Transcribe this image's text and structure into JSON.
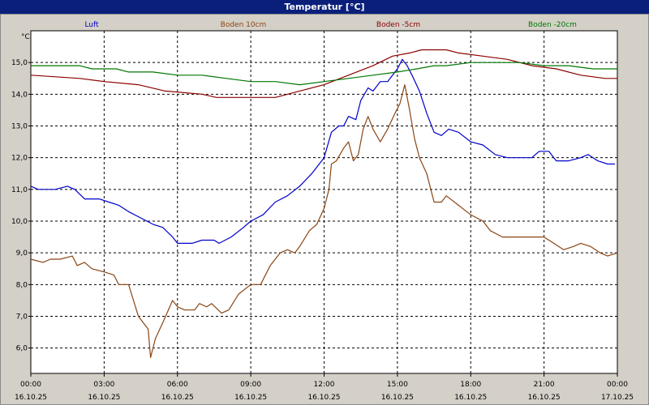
{
  "window": {
    "title": "Temperatur [°C]"
  },
  "chart_data": {
    "type": "line",
    "title": "Temperatur [°C]",
    "ylabel": "°C",
    "ylim": [
      5.2,
      16.0
    ],
    "yticks": [
      6.0,
      7.0,
      8.0,
      9.0,
      10.0,
      11.0,
      12.0,
      13.0,
      14.0,
      15.0
    ],
    "ytick_labels": [
      "6,0",
      "7,0",
      "8,0",
      "9,0",
      "10,0",
      "11,0",
      "12,0",
      "13,0",
      "14,0",
      "15,0"
    ],
    "xlim": [
      0,
      24
    ],
    "xticks": [
      0,
      3,
      6,
      9,
      12,
      15,
      18,
      21,
      24
    ],
    "xtick_time_labels": [
      "00:00",
      "03:00",
      "06:00",
      "09:00",
      "12:00",
      "15:00",
      "18:00",
      "21:00",
      "00:00"
    ],
    "xtick_date_labels": [
      "16.10.25",
      "16.10.25",
      "16.10.25",
      "16.10.25",
      "16.10.25",
      "16.10.25",
      "16.10.25",
      "16.10.25",
      "17.10.25"
    ],
    "grid": true,
    "legend_position": "top",
    "series": [
      {
        "name": "Luft",
        "color": "#0000cc",
        "points": [
          [
            0,
            11.1
          ],
          [
            0.3,
            11.0
          ],
          [
            1,
            11.0
          ],
          [
            1.5,
            11.1
          ],
          [
            1.8,
            11.0
          ],
          [
            2.2,
            10.7
          ],
          [
            2.8,
            10.7
          ],
          [
            3.2,
            10.6
          ],
          [
            3.6,
            10.5
          ],
          [
            4,
            10.3
          ],
          [
            4.5,
            10.1
          ],
          [
            5,
            9.9
          ],
          [
            5.4,
            9.8
          ],
          [
            5.8,
            9.5
          ],
          [
            6,
            9.3
          ],
          [
            6.6,
            9.3
          ],
          [
            7,
            9.4
          ],
          [
            7.5,
            9.4
          ],
          [
            7.7,
            9.3
          ],
          [
            8.2,
            9.5
          ],
          [
            8.7,
            9.8
          ],
          [
            9,
            10.0
          ],
          [
            9.5,
            10.2
          ],
          [
            10,
            10.6
          ],
          [
            10.5,
            10.8
          ],
          [
            11,
            11.1
          ],
          [
            11.5,
            11.5
          ],
          [
            12,
            12.0
          ],
          [
            12.3,
            12.8
          ],
          [
            12.6,
            13.0
          ],
          [
            12.8,
            13.0
          ],
          [
            13,
            13.3
          ],
          [
            13.3,
            13.2
          ],
          [
            13.5,
            13.8
          ],
          [
            13.8,
            14.2
          ],
          [
            14,
            14.1
          ],
          [
            14.3,
            14.4
          ],
          [
            14.6,
            14.4
          ],
          [
            15,
            14.8
          ],
          [
            15.2,
            15.1
          ],
          [
            15.4,
            14.9
          ],
          [
            15.6,
            14.6
          ],
          [
            15.9,
            14.1
          ],
          [
            16.2,
            13.4
          ],
          [
            16.5,
            12.8
          ],
          [
            16.8,
            12.7
          ],
          [
            17.1,
            12.9
          ],
          [
            17.5,
            12.8
          ],
          [
            18,
            12.5
          ],
          [
            18.5,
            12.4
          ],
          [
            19,
            12.1
          ],
          [
            19.5,
            12.0
          ],
          [
            20,
            12.0
          ],
          [
            20.5,
            12.0
          ],
          [
            20.8,
            12.2
          ],
          [
            21.2,
            12.2
          ],
          [
            21.5,
            11.9
          ],
          [
            22,
            11.9
          ],
          [
            22.5,
            12.0
          ],
          [
            22.8,
            12.1
          ],
          [
            23.2,
            11.9
          ],
          [
            23.6,
            11.8
          ],
          [
            23.9,
            11.8
          ]
        ]
      },
      {
        "name": "Boden 10cm",
        "color": "#8b4513",
        "points": [
          [
            0,
            8.8
          ],
          [
            0.5,
            8.7
          ],
          [
            0.8,
            8.8
          ],
          [
            1.2,
            8.8
          ],
          [
            1.7,
            8.9
          ],
          [
            1.9,
            8.6
          ],
          [
            2.2,
            8.7
          ],
          [
            2.5,
            8.5
          ],
          [
            3,
            8.4
          ],
          [
            3.4,
            8.3
          ],
          [
            3.6,
            8.0
          ],
          [
            4,
            8.0
          ],
          [
            4.4,
            7.0
          ],
          [
            4.8,
            6.6
          ],
          [
            4.9,
            5.7
          ],
          [
            5.1,
            6.3
          ],
          [
            5.4,
            6.8
          ],
          [
            5.8,
            7.5
          ],
          [
            6,
            7.3
          ],
          [
            6.3,
            7.2
          ],
          [
            6.7,
            7.2
          ],
          [
            6.9,
            7.4
          ],
          [
            7.2,
            7.3
          ],
          [
            7.4,
            7.4
          ],
          [
            7.8,
            7.1
          ],
          [
            8.1,
            7.2
          ],
          [
            8.5,
            7.7
          ],
          [
            9,
            8.0
          ],
          [
            9.4,
            8.0
          ],
          [
            9.8,
            8.6
          ],
          [
            10.2,
            9.0
          ],
          [
            10.5,
            9.1
          ],
          [
            10.8,
            9.0
          ],
          [
            11,
            9.2
          ],
          [
            11.4,
            9.7
          ],
          [
            11.7,
            9.9
          ],
          [
            12,
            10.4
          ],
          [
            12.2,
            11.0
          ],
          [
            12.3,
            11.8
          ],
          [
            12.5,
            11.9
          ],
          [
            12.8,
            12.3
          ],
          [
            13,
            12.5
          ],
          [
            13.2,
            11.9
          ],
          [
            13.4,
            12.1
          ],
          [
            13.6,
            12.9
          ],
          [
            13.8,
            13.3
          ],
          [
            14,
            12.9
          ],
          [
            14.3,
            12.5
          ],
          [
            14.6,
            12.9
          ],
          [
            14.9,
            13.4
          ],
          [
            15.1,
            13.7
          ],
          [
            15.3,
            14.3
          ],
          [
            15.5,
            13.5
          ],
          [
            15.7,
            12.6
          ],
          [
            15.9,
            12.0
          ],
          [
            16.2,
            11.5
          ],
          [
            16.5,
            10.6
          ],
          [
            16.8,
            10.6
          ],
          [
            17,
            10.8
          ],
          [
            17.5,
            10.5
          ],
          [
            18,
            10.2
          ],
          [
            18.5,
            10.0
          ],
          [
            18.8,
            9.7
          ],
          [
            19.3,
            9.5
          ],
          [
            20,
            9.5
          ],
          [
            21,
            9.5
          ],
          [
            21.4,
            9.3
          ],
          [
            21.8,
            9.1
          ],
          [
            22.2,
            9.2
          ],
          [
            22.5,
            9.3
          ],
          [
            22.9,
            9.2
          ],
          [
            23.3,
            9.0
          ],
          [
            23.6,
            8.9
          ],
          [
            24,
            9.0
          ]
        ]
      },
      {
        "name": "Boden -5cm",
        "color": "#8b0000",
        "points": [
          [
            0,
            14.6
          ],
          [
            2,
            14.5
          ],
          [
            3,
            14.4
          ],
          [
            4.4,
            14.3
          ],
          [
            5.5,
            14.1
          ],
          [
            7,
            14.0
          ],
          [
            7.6,
            13.9
          ],
          [
            9,
            13.9
          ],
          [
            10,
            13.9
          ],
          [
            11,
            14.1
          ],
          [
            12,
            14.3
          ],
          [
            13,
            14.6
          ],
          [
            14,
            14.9
          ],
          [
            14.8,
            15.2
          ],
          [
            15.5,
            15.3
          ],
          [
            16,
            15.4
          ],
          [
            17,
            15.4
          ],
          [
            17.5,
            15.3
          ],
          [
            18.5,
            15.2
          ],
          [
            19.5,
            15.1
          ],
          [
            20.5,
            14.9
          ],
          [
            21.5,
            14.8
          ],
          [
            22.5,
            14.6
          ],
          [
            23.5,
            14.5
          ],
          [
            24,
            14.5
          ]
        ]
      },
      {
        "name": "Boden -20cm",
        "color": "#007700",
        "points": [
          [
            0,
            14.9
          ],
          [
            2,
            14.9
          ],
          [
            2.5,
            14.8
          ],
          [
            3.5,
            14.8
          ],
          [
            4,
            14.7
          ],
          [
            5,
            14.7
          ],
          [
            6,
            14.6
          ],
          [
            7,
            14.6
          ],
          [
            8,
            14.5
          ],
          [
            9,
            14.4
          ],
          [
            10,
            14.4
          ],
          [
            11,
            14.3
          ],
          [
            12,
            14.4
          ],
          [
            13,
            14.5
          ],
          [
            14,
            14.6
          ],
          [
            15,
            14.7
          ],
          [
            15.8,
            14.8
          ],
          [
            16.5,
            14.9
          ],
          [
            17,
            14.9
          ],
          [
            18,
            15.0
          ],
          [
            20,
            15.0
          ],
          [
            21,
            14.9
          ],
          [
            22,
            14.9
          ],
          [
            23,
            14.8
          ],
          [
            24,
            14.8
          ]
        ]
      }
    ]
  }
}
